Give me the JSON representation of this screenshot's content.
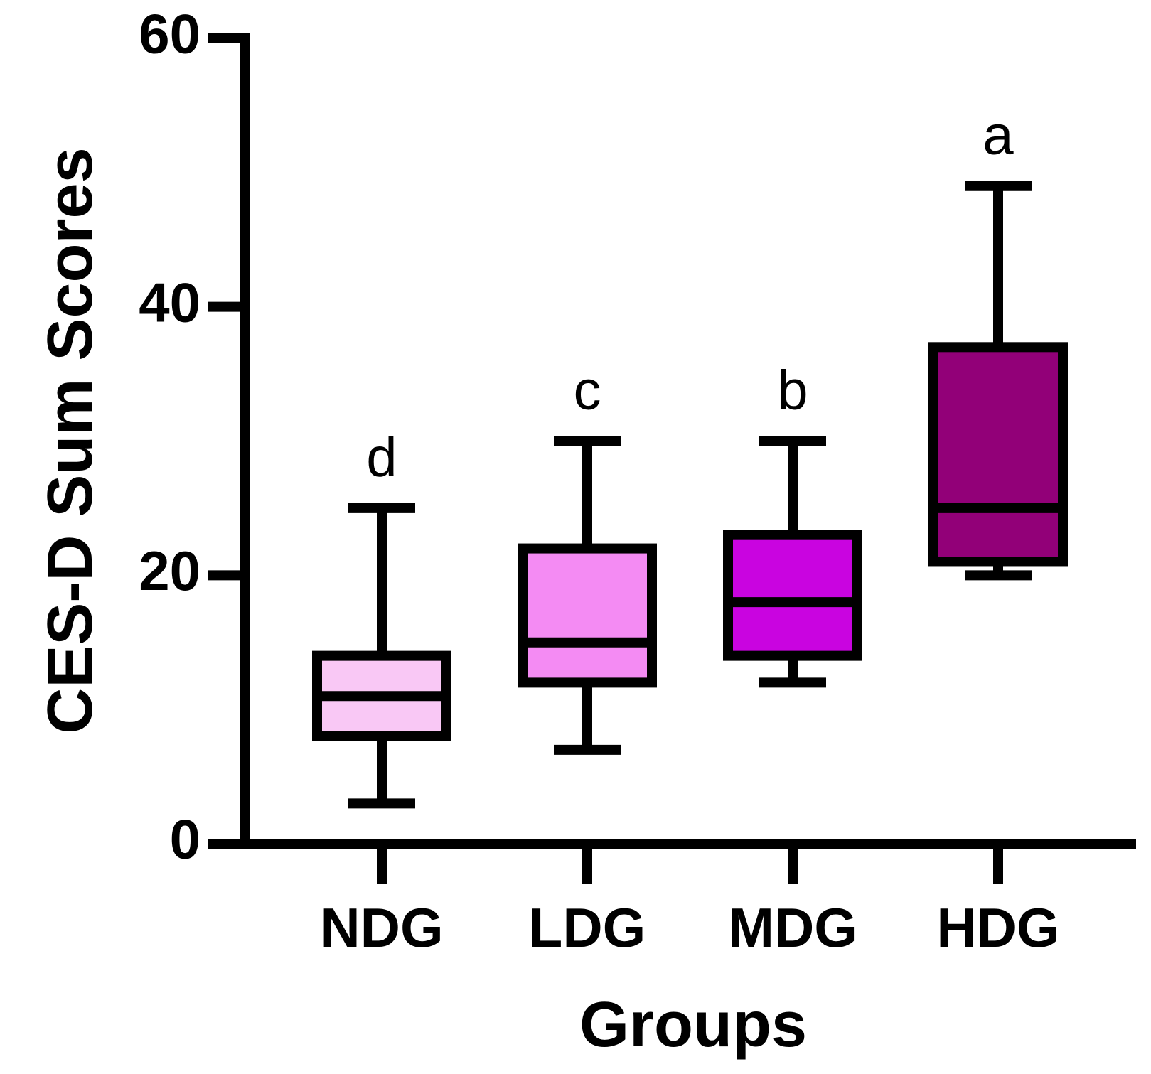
{
  "chart_data": {
    "type": "box",
    "title": "",
    "xlabel": "Groups",
    "ylabel": "CES-D Sum Scores",
    "ylim": [
      0,
      60
    ],
    "yticks": [
      0,
      20,
      40,
      60
    ],
    "categories": [
      "NDG",
      "LDG",
      "MDG",
      "HDG"
    ],
    "groups": [
      {
        "name": "NDG",
        "min": 3,
        "q1": 8,
        "median": 11,
        "q3": 14,
        "max": 25,
        "letter": "d",
        "color": "#f9c8f5"
      },
      {
        "name": "LDG",
        "min": 7,
        "q1": 12,
        "median": 15,
        "q3": 22,
        "max": 30,
        "letter": "c",
        "color": "#f48bf3"
      },
      {
        "name": "MDG",
        "min": 12,
        "q1": 14,
        "median": 18,
        "q3": 23,
        "max": 30,
        "letter": "b",
        "color": "#c904e0"
      },
      {
        "name": "HDG",
        "min": 20,
        "q1": 21,
        "median": 25,
        "q3": 37,
        "max": 49,
        "letter": "a",
        "color": "#920078"
      }
    ]
  }
}
